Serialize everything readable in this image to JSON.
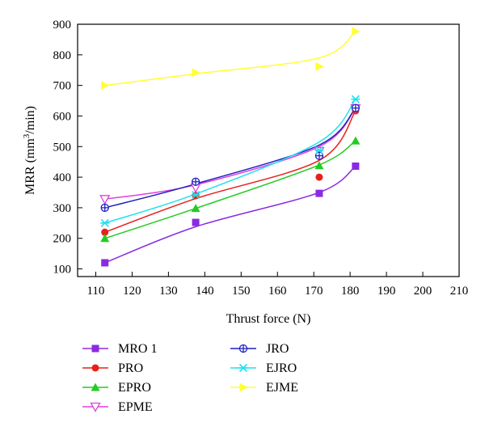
{
  "chart_data": {
    "type": "line",
    "xlabel": "Thrust force (N)",
    "ylabel_parts": [
      "MRR (mm",
      "3",
      "/min)"
    ],
    "xlim": [
      105,
      210
    ],
    "ylim": [
      75,
      900
    ],
    "xticks": [
      110,
      120,
      130,
      140,
      150,
      160,
      170,
      180,
      190,
      200,
      210
    ],
    "yticks": [
      100,
      200,
      300,
      400,
      500,
      600,
      700,
      800,
      900
    ],
    "grid": false,
    "legend_position": "bottom",
    "series": [
      {
        "name": "MRO 1",
        "color": "#8a2be2",
        "marker": "square",
        "x": [
          112.5,
          137.5,
          171.5,
          181.5
        ],
        "y": [
          120,
          252,
          347,
          436
        ],
        "fit_y": [
          120,
          238,
          350,
          436
        ]
      },
      {
        "name": "PRO",
        "color": "#e8201c",
        "marker": "circle",
        "x": [
          112.5,
          137.5,
          171.5,
          181.5
        ],
        "y": [
          220,
          340,
          400,
          617
        ],
        "fit_y": [
          220,
          330,
          455,
          617
        ]
      },
      {
        "name": "EPRO",
        "color": "#22cc22",
        "marker": "triangle-up",
        "x": [
          112.5,
          137.5,
          171.5,
          181.5
        ],
        "y": [
          200,
          298,
          438,
          519
        ],
        "fit_y": [
          200,
          298,
          440,
          519
        ]
      },
      {
        "name": "EPME",
        "color": "#e040e0",
        "marker": "triangle-down",
        "x": [
          112.5,
          137.5,
          171.5,
          181.5
        ],
        "y": [
          328,
          366,
          485,
          625
        ],
        "fit_y": [
          328,
          375,
          500,
          625
        ]
      },
      {
        "name": "JRO",
        "color": "#1f1fbf",
        "marker": "circle-cross",
        "x": [
          112.5,
          137.5,
          171.5,
          181.5
        ],
        "y": [
          300,
          385,
          470,
          626
        ],
        "fit_y": [
          300,
          378,
          505,
          626
        ]
      },
      {
        "name": "EJRO",
        "color": "#22e0f0",
        "marker": "star",
        "x": [
          112.5,
          137.5,
          171.5,
          181.5
        ],
        "y": [
          250,
          342,
          488,
          655
        ],
        "fit_y": [
          250,
          345,
          515,
          655
        ]
      },
      {
        "name": "EJME",
        "color": "#ffff33",
        "marker": "triangle-right",
        "x": [
          112.5,
          137.5,
          171.5,
          181.5
        ],
        "y": [
          700,
          742,
          762,
          877
        ],
        "fit_y": [
          700,
          738,
          790,
          877
        ]
      }
    ]
  }
}
